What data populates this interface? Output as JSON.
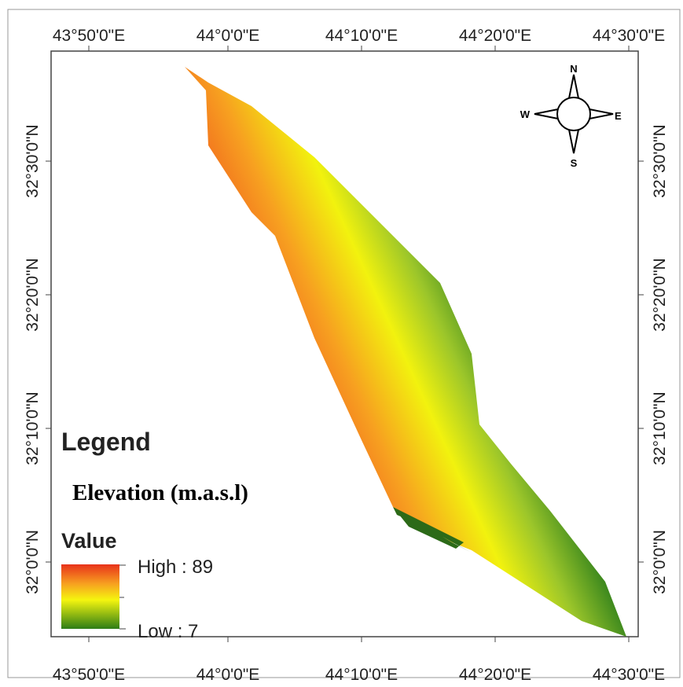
{
  "map": {
    "top_labels": [
      "43°50'0\"E",
      "44°0'0\"E",
      "44°10'0\"E",
      "44°20'0\"E",
      "44°30'0\"E"
    ],
    "bottom_labels": [
      "43°50'0\"E",
      "44°0'0\"E",
      "44°10'0\"E",
      "44°20'0\"E",
      "44°30'0\"E"
    ],
    "left_labels": [
      "32°30'0\"N",
      "32°20'0\"N",
      "32°10'0\"N",
      "32°0'0\"N"
    ],
    "right_labels": [
      "32°30'0\"N",
      "32°20'0\"N",
      "32°10'0\"N",
      "32°0'0\"N"
    ],
    "compass": {
      "n": "N",
      "s": "S",
      "e": "E",
      "w": "W"
    },
    "legend": {
      "title": "Legend",
      "layer": "Elevation (m.a.s.l)",
      "field": "Value",
      "high": "High : 89",
      "low": "Low : 7"
    }
  }
}
